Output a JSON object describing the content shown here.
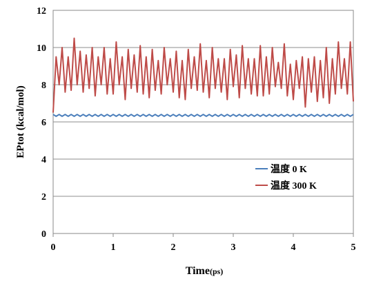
{
  "chart_data": {
    "type": "line",
    "xlabel": "Time",
    "xlabel_unit": "(ps)",
    "ylabel": "EPtot (kcal/mol)",
    "xlim": [
      0,
      5
    ],
    "ylim": [
      0,
      12
    ],
    "x_ticks": [
      "0",
      "1",
      "2",
      "3",
      "4",
      "5"
    ],
    "y_ticks": [
      "0",
      "2",
      "4",
      "6",
      "8",
      "10",
      "12"
    ],
    "grid": "horizontal",
    "legend_position": "center-right",
    "series": [
      {
        "name": "温度 0 K",
        "color": "#4a7ebb",
        "x_start": 0,
        "x_step": 0.05,
        "values": [
          6.4,
          6.3,
          6.4,
          6.3,
          6.4,
          6.3,
          6.4,
          6.3,
          6.4,
          6.3,
          6.4,
          6.3,
          6.4,
          6.3,
          6.4,
          6.3,
          6.4,
          6.3,
          6.4,
          6.3,
          6.4,
          6.3,
          6.4,
          6.3,
          6.4,
          6.3,
          6.4,
          6.3,
          6.4,
          6.3,
          6.4,
          6.3,
          6.4,
          6.3,
          6.4,
          6.3,
          6.4,
          6.3,
          6.4,
          6.3,
          6.4,
          6.3,
          6.4,
          6.3,
          6.4,
          6.3,
          6.4,
          6.3,
          6.4,
          6.3,
          6.4,
          6.3,
          6.4,
          6.3,
          6.4,
          6.3,
          6.4,
          6.3,
          6.4,
          6.3,
          6.4,
          6.3,
          6.4,
          6.3,
          6.4,
          6.3,
          6.4,
          6.3,
          6.4,
          6.3,
          6.4,
          6.3,
          6.4,
          6.3,
          6.4,
          6.3,
          6.4,
          6.3,
          6.4,
          6.3,
          6.4,
          6.3,
          6.4,
          6.3,
          6.4,
          6.3,
          6.4,
          6.3,
          6.4,
          6.3,
          6.4,
          6.3,
          6.4,
          6.3,
          6.4,
          6.3,
          6.4,
          6.3,
          6.4,
          6.3,
          6.4
        ]
      },
      {
        "name": "温度 300 K",
        "color": "#be4b48",
        "x_start": 0,
        "x_step": 0.05,
        "values": [
          6.5,
          9.5,
          8.0,
          10.0,
          7.6,
          9.5,
          7.7,
          10.5,
          8.0,
          9.8,
          7.6,
          9.6,
          7.8,
          10.0,
          7.4,
          9.5,
          8.0,
          10.0,
          7.5,
          9.4,
          7.5,
          10.3,
          8.0,
          9.5,
          7.2,
          9.9,
          7.8,
          9.6,
          7.6,
          10.1,
          7.5,
          9.5,
          7.3,
          9.9,
          7.7,
          9.3,
          7.5,
          10.0,
          8.0,
          9.4,
          7.6,
          9.8,
          7.3,
          9.3,
          7.2,
          9.9,
          7.8,
          9.5,
          7.7,
          10.2,
          7.6,
          9.3,
          7.3,
          10.0,
          7.8,
          9.4,
          7.6,
          9.4,
          7.2,
          9.9,
          7.9,
          9.6,
          7.3,
          10.1,
          7.8,
          9.4,
          7.5,
          9.4,
          7.4,
          10.1,
          7.4,
          9.5,
          7.5,
          10.0,
          7.9,
          9.2,
          7.8,
          10.2,
          7.4,
          9.1,
          7.2,
          9.3,
          7.8,
          9.5,
          6.8,
          9.4,
          7.6,
          9.5,
          7.1,
          9.3,
          7.3,
          10.0,
          7.0,
          9.4,
          7.5,
          10.3,
          7.8,
          9.4,
          7.5,
          10.3,
          7.1
        ]
      }
    ]
  }
}
